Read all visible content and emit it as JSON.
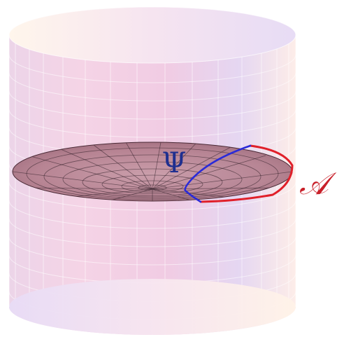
{
  "labels": {
    "psi": "Ψ",
    "region": "𝒜"
  },
  "colors": {
    "cylinder_pink": "#f2c9e0",
    "cylinder_lavender": "#ddd6f3",
    "cylinder_cream": "#fff1e6",
    "disk": "#b8808f",
    "disk_mesh": "#2a1a22",
    "boundary_red": "#e0202a",
    "geodesic_blue": "#2a2ad8",
    "psi_text": "#1f2f8f",
    "region_text": "#c8202a"
  }
}
